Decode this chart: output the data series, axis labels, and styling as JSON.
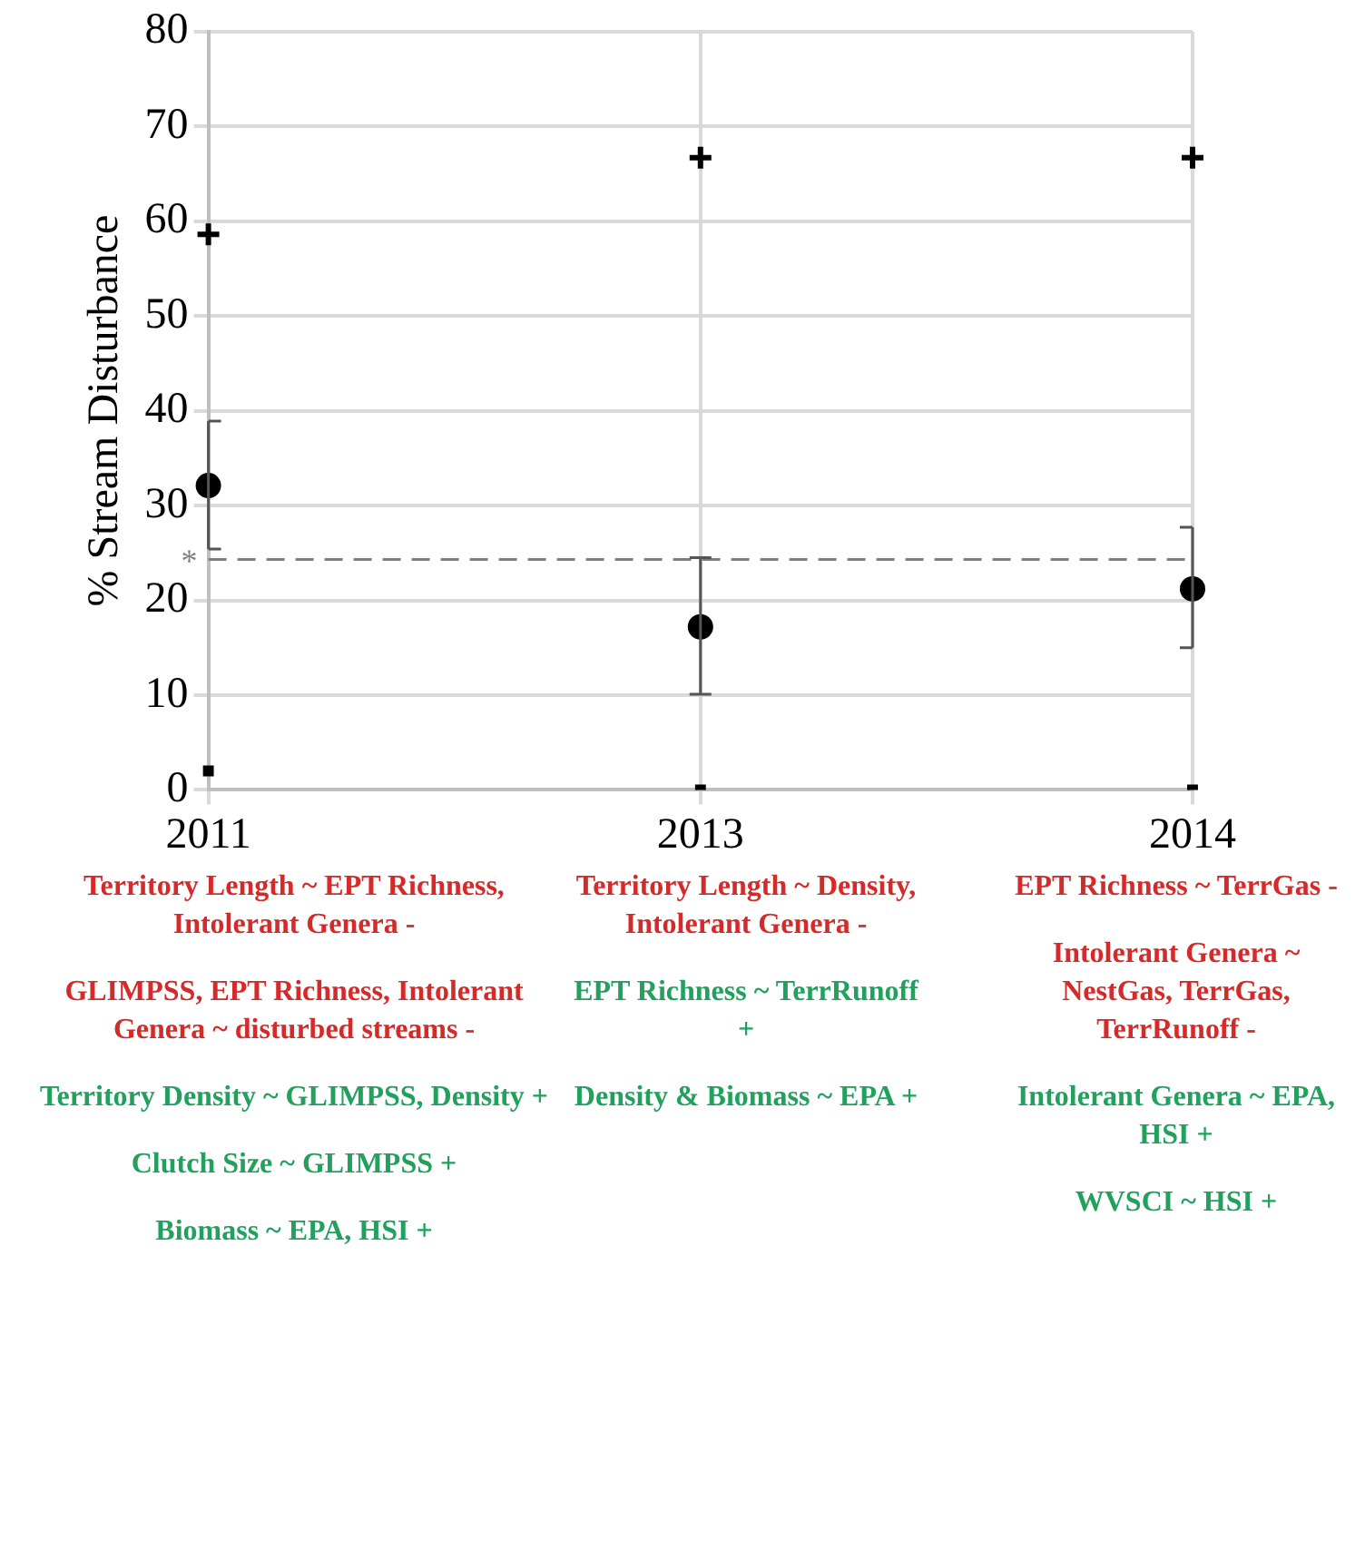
{
  "chart_data": {
    "type": "scatter",
    "ylabel": "% Stream Disturbance",
    "categories": [
      "2011",
      "2013",
      "2014"
    ],
    "series": [
      {
        "color": "#000000",
        "values": [
          32.1,
          17.2,
          21.2
        ],
        "errors": [
          [
            25.4,
            38.9
          ],
          [
            10.1,
            24.5
          ],
          [
            15.0,
            27.7
          ]
        ]
      },
      {
        "color": "#000000",
        "values": [
          58.6,
          66.7,
          66.7
        ],
        "marker": "cross"
      },
      {
        "color": "#000000",
        "values": [
          2.0,
          0,
          0
        ],
        "marker": "square"
      }
    ],
    "ylim": [
      0,
      80
    ],
    "yticks": [
      0,
      10,
      20,
      30,
      40,
      50,
      60,
      70,
      80
    ],
    "grid": true,
    "legend": false,
    "marker": "circle",
    "ref_lines": [
      {
        "axis": "y",
        "value": 24.3,
        "label": "*",
        "color": "#808080",
        "line_style": "dashed"
      }
    ],
    "annotations": [
      "Territory Length ~ EPT Richness, Intolerant Genera -\n\nGLIMPSS, EPT Richness, Intolerant Genera ~ disturbed streams -\n\nTerritory Density ~ GLIMPSS, Density +\n\nClutch Size ~ GLIMPSS +\n\nBiomass ~ EPA, HSI +",
      "Territory Length ~ Density, Intolerant Genera -\n\nEPT Richness ~ TerrRunoff +\n\nDensity & Biomass ~ EPA +",
      "EPT Richness ~ TerrGas -\n\nIntolerant Genera ~ NestGas, TerrGas, TerrRunoff -\n\nIntolerant Genera ~ EPA, HSI +\n\nWVSCI ~ HSI +"
    ]
  }
}
